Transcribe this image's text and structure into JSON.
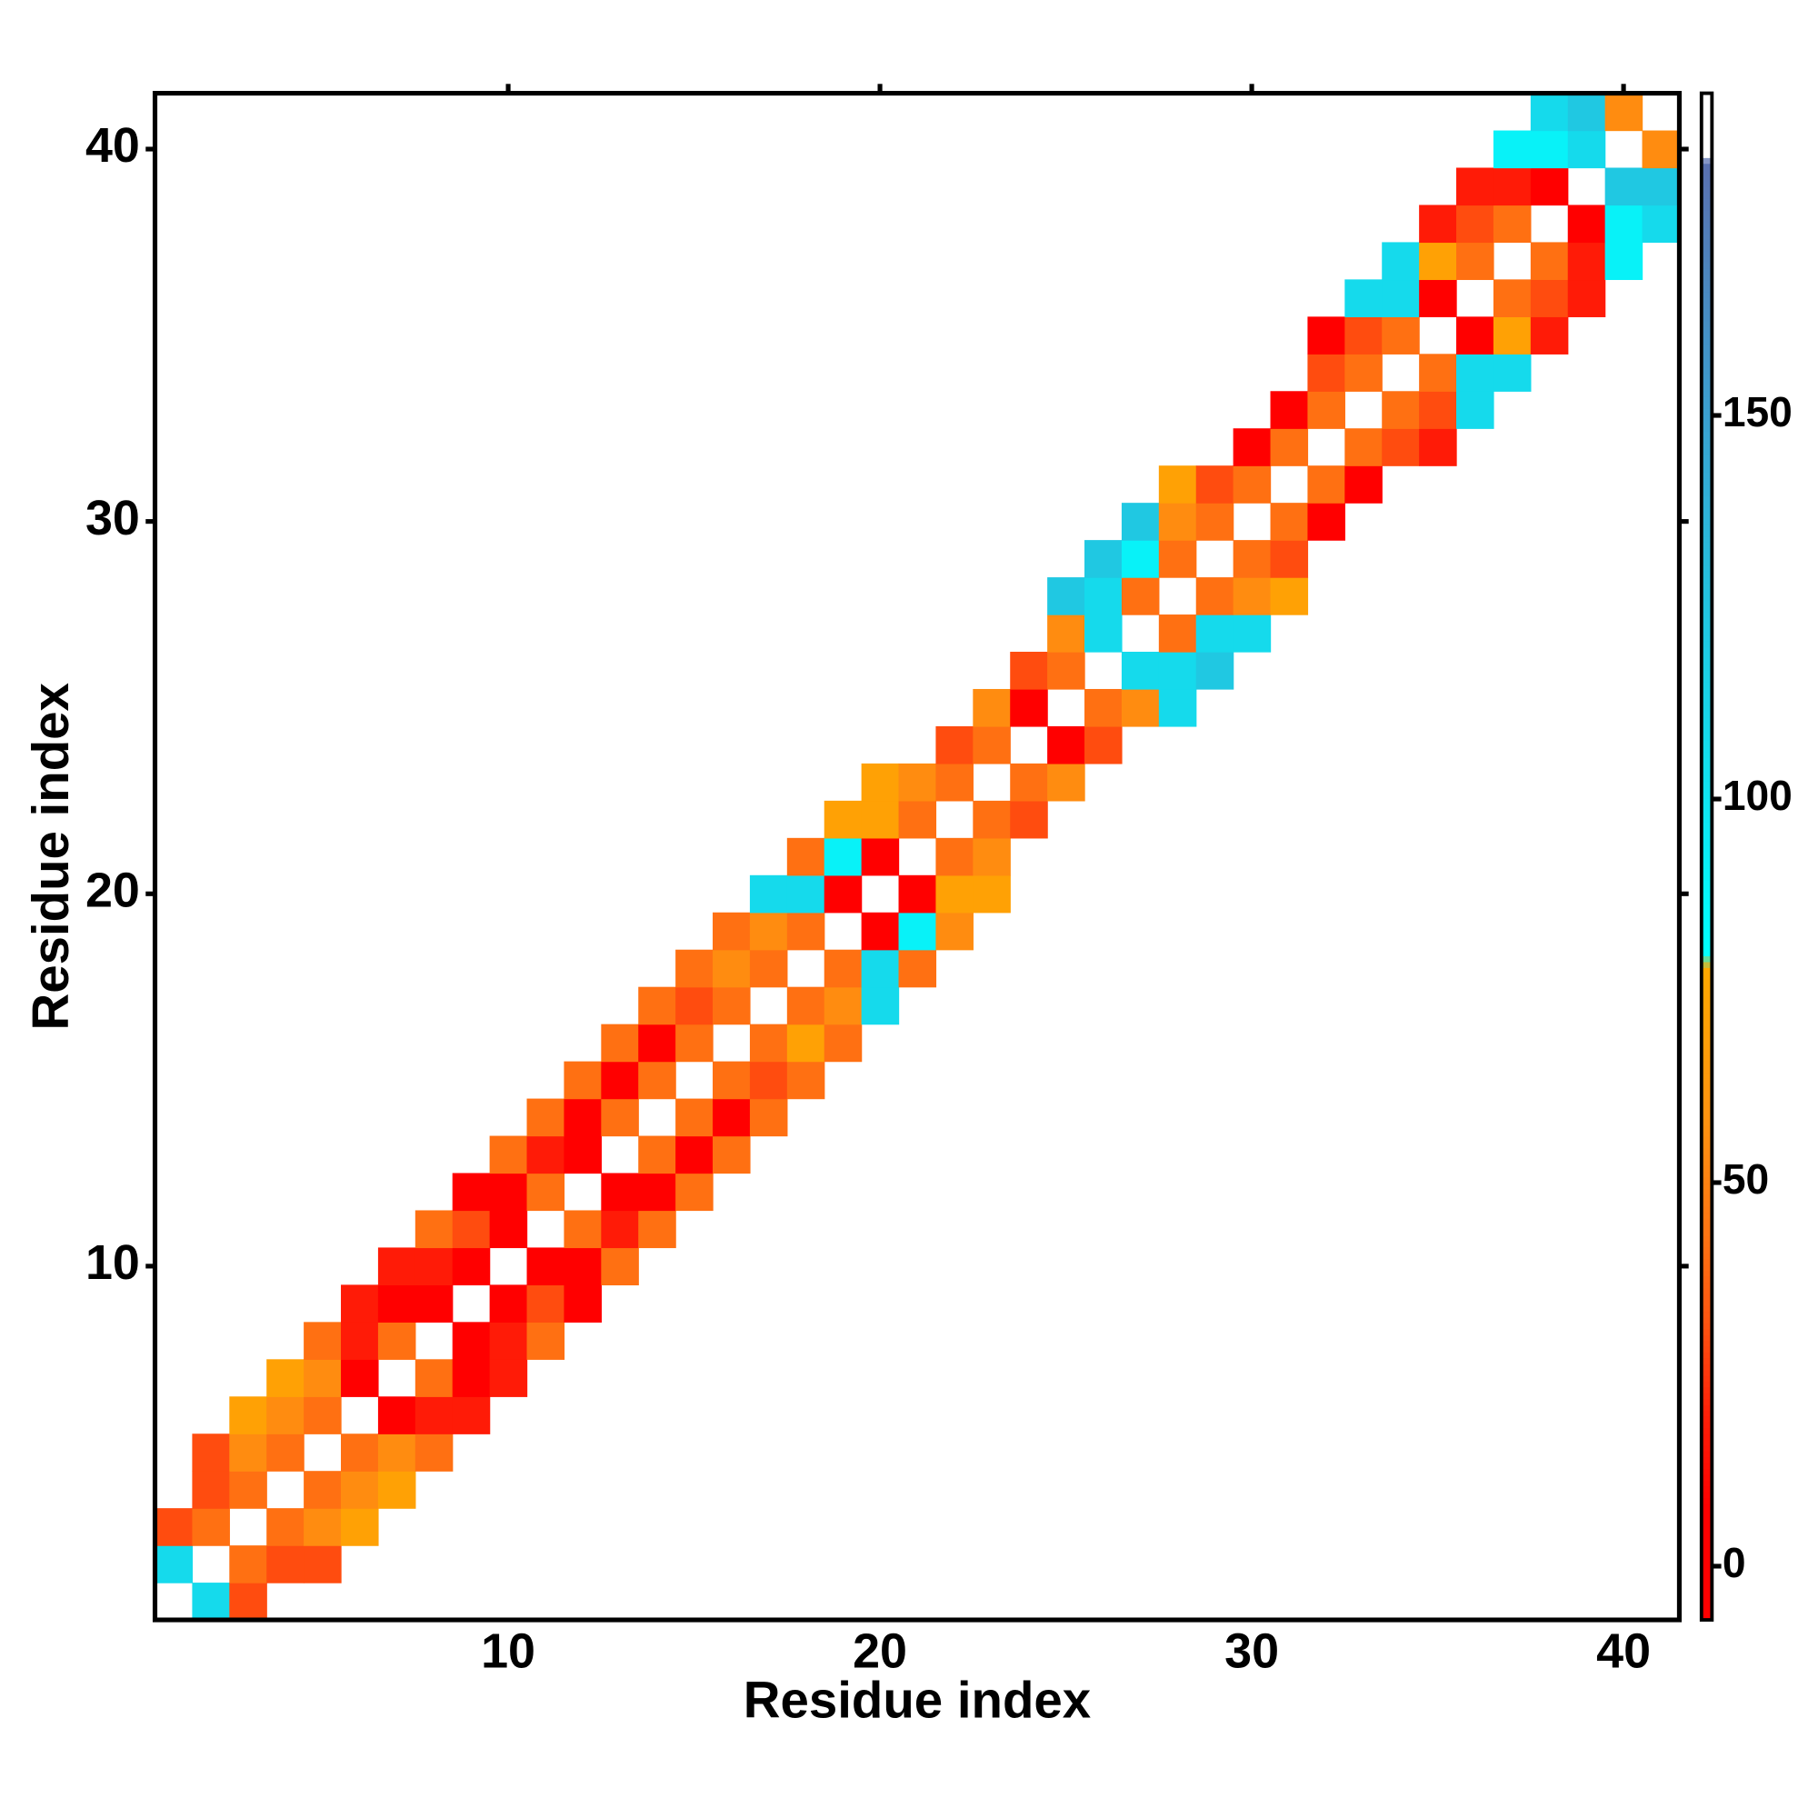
{
  "chart_data": {
    "type": "heatmap",
    "xlabel": "Residue index",
    "ylabel": "Residue index",
    "xlim": [
      0.5,
      41.5
    ],
    "ylim": [
      0.5,
      41.5
    ],
    "xticks": [
      10,
      20,
      30,
      40
    ],
    "yticks": [
      10,
      20,
      30,
      40
    ],
    "clim": [
      -7,
      192
    ],
    "cticks": [
      0,
      50,
      100,
      150
    ],
    "colorscale": [
      [
        -7,
        "#ff0000"
      ],
      [
        8,
        "#ff0000"
      ],
      [
        20,
        "#ff2008"
      ],
      [
        32,
        "#ff5510"
      ],
      [
        44,
        "#ff7512"
      ],
      [
        58,
        "#ff9210"
      ],
      [
        78,
        "#ffa800"
      ],
      [
        80,
        "#00ffff"
      ],
      [
        125,
        "#22c4e0"
      ],
      [
        150,
        "#3aa0d0"
      ],
      [
        183,
        "#5a70b0"
      ],
      [
        184,
        "#ffffff"
      ],
      [
        192,
        "#ffffff"
      ]
    ],
    "rows": [
      {
        "y": 1,
        "x": [
          2,
          3
        ],
        "values": [
          108,
          30
        ]
      },
      {
        "y": 2,
        "x": [
          1,
          3,
          4,
          5
        ],
        "values": [
          108,
          42,
          30,
          30
        ]
      },
      {
        "y": 3,
        "x": [
          1,
          2,
          4,
          5,
          6
        ],
        "values": [
          30,
          42,
          42,
          55,
          72
        ]
      },
      {
        "y": 4,
        "x": [
          2,
          3,
          5,
          6,
          7
        ],
        "values": [
          30,
          42,
          42,
          55,
          72
        ]
      },
      {
        "y": 5,
        "x": [
          2,
          3,
          4,
          6,
          7,
          8
        ],
        "values": [
          30,
          55,
          42,
          42,
          55,
          42
        ]
      },
      {
        "y": 6,
        "x": [
          3,
          4,
          5,
          7,
          8,
          9
        ],
        "values": [
          72,
          55,
          42,
          5,
          18,
          18
        ]
      },
      {
        "y": 7,
        "x": [
          4,
          5,
          6,
          8,
          9,
          10
        ],
        "values": [
          72,
          55,
          5,
          42,
          5,
          18
        ]
      },
      {
        "y": 8,
        "x": [
          5,
          6,
          7,
          9,
          10,
          11
        ],
        "values": [
          42,
          18,
          42,
          5,
          18,
          42
        ]
      },
      {
        "y": 9,
        "x": [
          6,
          7,
          8,
          10,
          11,
          12
        ],
        "values": [
          18,
          5,
          5,
          5,
          30,
          5
        ]
      },
      {
        "y": 10,
        "x": [
          7,
          8,
          9,
          11,
          12,
          13
        ],
        "values": [
          18,
          18,
          5,
          5,
          5,
          42
        ]
      },
      {
        "y": 11,
        "x": [
          8,
          9,
          10,
          12,
          13,
          14
        ],
        "values": [
          42,
          30,
          5,
          42,
          18,
          42
        ]
      },
      {
        "y": 12,
        "x": [
          9,
          10,
          11,
          13,
          14,
          15
        ],
        "values": [
          5,
          5,
          42,
          5,
          5,
          42
        ]
      },
      {
        "y": 13,
        "x": [
          10,
          11,
          12,
          14,
          15,
          16
        ],
        "values": [
          42,
          18,
          5,
          42,
          5,
          42
        ]
      },
      {
        "y": 14,
        "x": [
          11,
          12,
          13,
          15,
          16,
          17
        ],
        "values": [
          42,
          5,
          42,
          42,
          5,
          42
        ]
      },
      {
        "y": 15,
        "x": [
          12,
          13,
          14,
          16,
          17,
          18
        ],
        "values": [
          42,
          5,
          42,
          42,
          30,
          42
        ]
      },
      {
        "y": 16,
        "x": [
          13,
          14,
          15,
          17,
          18,
          19
        ],
        "values": [
          42,
          5,
          42,
          42,
          72,
          42
        ]
      },
      {
        "y": 17,
        "x": [
          14,
          15,
          16,
          18,
          19,
          20
        ],
        "values": [
          42,
          30,
          42,
          42,
          55,
          108
        ]
      },
      {
        "y": 18,
        "x": [
          15,
          16,
          17,
          19,
          20,
          21
        ],
        "values": [
          42,
          55,
          42,
          42,
          108,
          42
        ]
      },
      {
        "y": 19,
        "x": [
          16,
          17,
          18,
          20,
          21,
          22
        ],
        "values": [
          42,
          55,
          42,
          5,
          90,
          55
        ]
      },
      {
        "y": 20,
        "x": [
          17,
          18,
          19,
          21,
          22,
          23
        ],
        "values": [
          108,
          108,
          5,
          5,
          72,
          72
        ]
      },
      {
        "y": 21,
        "x": [
          18,
          19,
          20,
          22,
          23
        ],
        "values": [
          42,
          90,
          5,
          42,
          55
        ]
      },
      {
        "y": 22,
        "x": [
          19,
          20,
          21,
          23,
          24
        ],
        "values": [
          72,
          72,
          42,
          42,
          30
        ]
      },
      {
        "y": 23,
        "x": [
          20,
          21,
          22,
          24,
          25
        ],
        "values": [
          72,
          55,
          42,
          42,
          55
        ]
      },
      {
        "y": 24,
        "x": [
          22,
          23,
          25,
          26
        ],
        "values": [
          30,
          42,
          5,
          30
        ]
      },
      {
        "y": 25,
        "x": [
          23,
          24,
          26,
          27,
          28
        ],
        "values": [
          55,
          5,
          42,
          55,
          108
        ]
      },
      {
        "y": 26,
        "x": [
          24,
          25,
          27,
          28,
          29
        ],
        "values": [
          30,
          42,
          108,
          108,
          122
        ]
      },
      {
        "y": 27,
        "x": [
          25,
          26,
          28,
          29,
          30
        ],
        "values": [
          55,
          108,
          42,
          108,
          108
        ]
      },
      {
        "y": 28,
        "x": [
          25,
          26,
          27,
          29,
          30,
          31
        ],
        "values": [
          122,
          108,
          42,
          42,
          55,
          72
        ]
      },
      {
        "y": 29,
        "x": [
          26,
          27,
          28,
          30,
          31
        ],
        "values": [
          122,
          90,
          42,
          42,
          30
        ]
      },
      {
        "y": 30,
        "x": [
          27,
          28,
          29,
          31,
          32
        ],
        "values": [
          122,
          55,
          42,
          42,
          5
        ]
      },
      {
        "y": 31,
        "x": [
          28,
          29,
          30,
          32,
          33
        ],
        "values": [
          72,
          30,
          42,
          42,
          5
        ]
      },
      {
        "y": 32,
        "x": [
          30,
          31,
          33,
          34,
          35
        ],
        "values": [
          5,
          42,
          42,
          30,
          18
        ]
      },
      {
        "y": 33,
        "x": [
          31,
          32,
          34,
          35,
          36
        ],
        "values": [
          5,
          42,
          42,
          30,
          108
        ]
      },
      {
        "y": 34,
        "x": [
          32,
          33,
          35,
          36,
          37
        ],
        "values": [
          30,
          42,
          42,
          108,
          108
        ]
      },
      {
        "y": 35,
        "x": [
          32,
          33,
          34,
          36,
          37,
          38
        ],
        "values": [
          5,
          30,
          42,
          5,
          72,
          18
        ]
      },
      {
        "y": 36,
        "x": [
          33,
          34,
          35,
          37,
          38,
          39
        ],
        "values": [
          108,
          108,
          5,
          42,
          30,
          18
        ]
      },
      {
        "y": 37,
        "x": [
          34,
          35,
          36,
          38,
          39,
          40
        ],
        "values": [
          108,
          72,
          42,
          42,
          18,
          90
        ]
      },
      {
        "y": 38,
        "x": [
          35,
          36,
          37,
          39,
          40,
          41
        ],
        "values": [
          18,
          30,
          42,
          5,
          90,
          108
        ]
      },
      {
        "y": 39,
        "x": [
          36,
          37,
          38,
          40,
          41
        ],
        "values": [
          18,
          18,
          5,
          122,
          122
        ]
      },
      {
        "y": 40,
        "x": [
          37,
          38,
          39,
          41
        ],
        "values": [
          90,
          90,
          108,
          55
        ]
      },
      {
        "y": 41,
        "x": [
          38,
          39,
          40
        ],
        "values": [
          108,
          122,
          55
        ]
      }
    ]
  }
}
